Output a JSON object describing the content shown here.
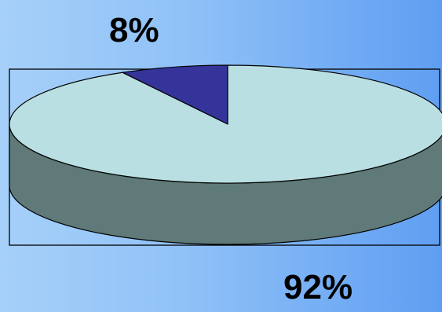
{
  "chart_data": {
    "type": "pie",
    "title": "",
    "series": [
      {
        "values": [
          8,
          92
        ],
        "labels": [
          "8%",
          "92%"
        ],
        "colors": [
          "#34349b",
          "#b9dfe2"
        ]
      }
    ],
    "three_d": true,
    "side_color": "#5f7a78",
    "plot_frame": true
  }
}
